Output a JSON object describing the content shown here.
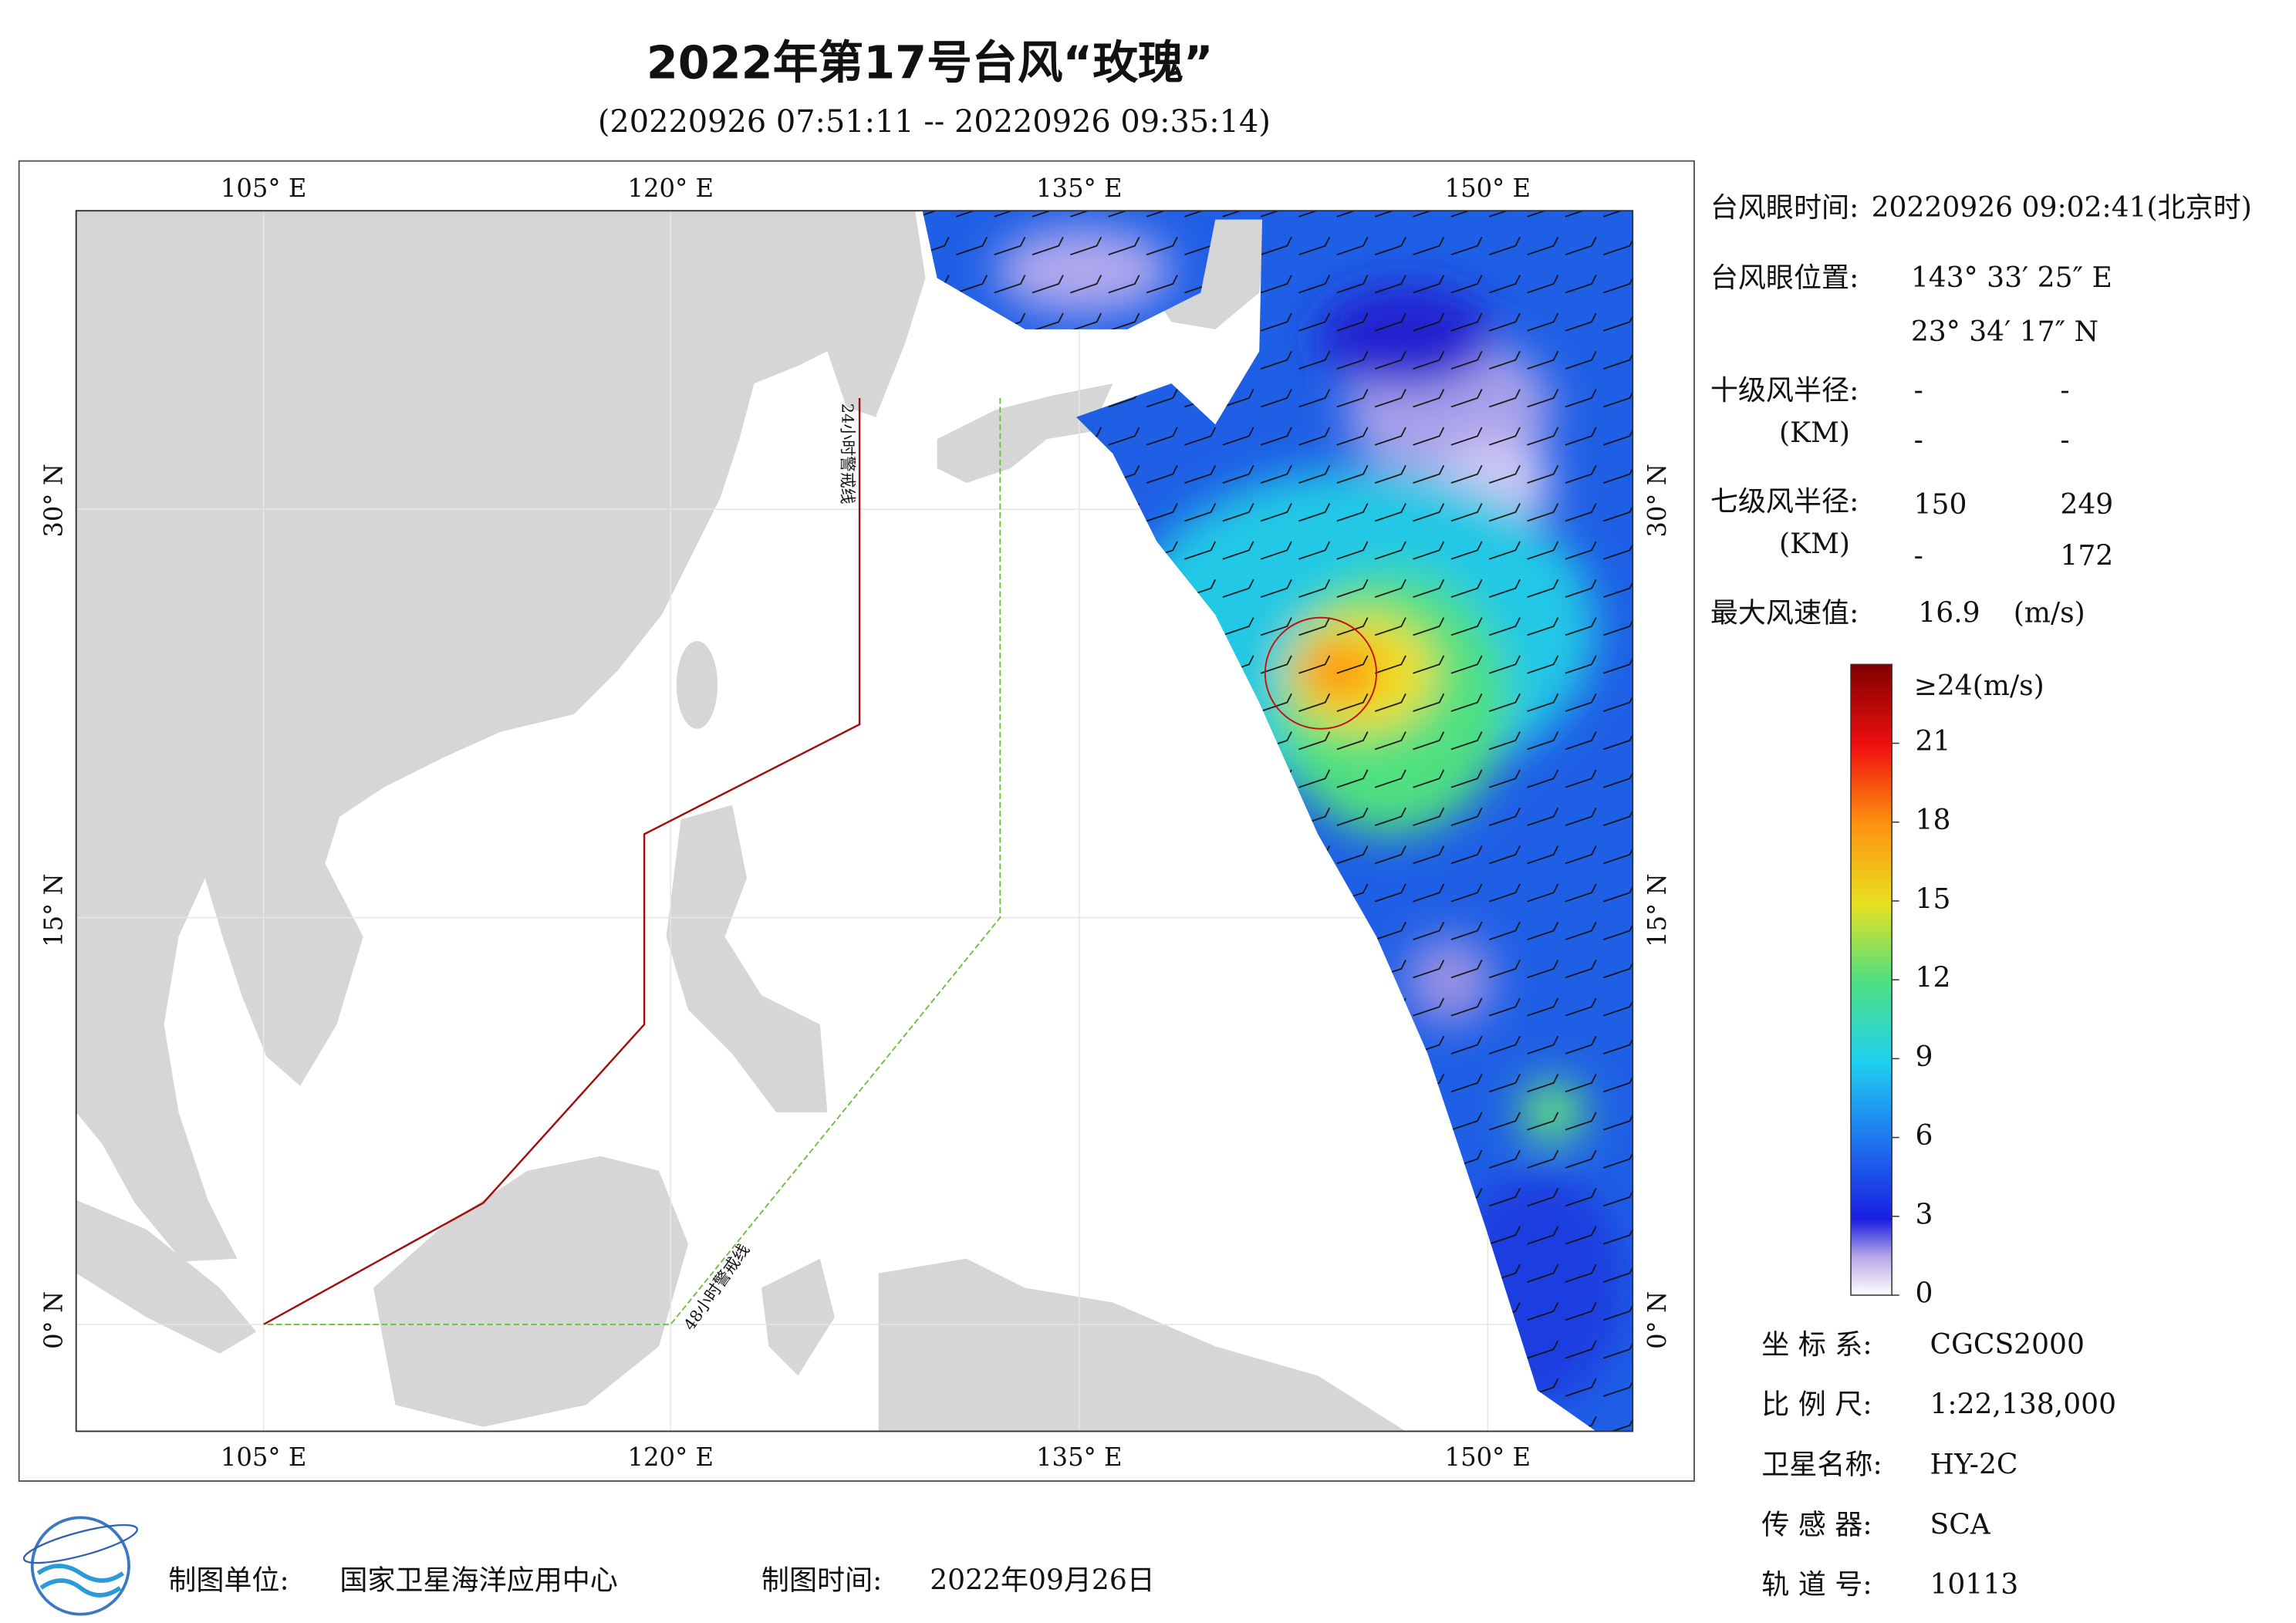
{
  "header": {
    "title": "2022年第17号台风“玫瑰”",
    "subtitle": "(20220926 07:51:11 -- 20220926 09:35:14)"
  },
  "map": {
    "lon_labels": [
      "105° E",
      "120° E",
      "135° E",
      "150° E"
    ],
    "lat_labels": [
      "30° N",
      "15° N",
      "0° N"
    ],
    "warning_lines": [
      "24小时警戒线",
      "48小时警戒线"
    ]
  },
  "info": {
    "eye_time_label": "台风眼时间:",
    "eye_time": "20220926 09:02:41(北京时)",
    "eye_pos_label": "台风眼位置:",
    "eye_lon": "143° 33′ 25″ E",
    "eye_lat": "23° 34′ 17″ N",
    "r10_label": "十级风半径:",
    "r10_unit": "(KM)",
    "r10": [
      [
        "-",
        "-"
      ],
      [
        "-",
        "-"
      ]
    ],
    "r7_label": "七级风半径:",
    "r7_unit": "(KM)",
    "r7": [
      [
        150,
        249
      ],
      [
        "-",
        172
      ]
    ],
    "max_wind_label": "最大风速值:",
    "max_wind": 16.9,
    "max_wind_unit": "(m/s)"
  },
  "colorbar": {
    "range": [
      0,
      24
    ],
    "ticks": [
      0,
      3,
      6,
      9,
      12,
      15,
      18,
      21
    ],
    "max_label": "≥24(m/s)"
  },
  "meta": [
    [
      "坐 标 系:",
      "CGCS2000"
    ],
    [
      "比 例 尺:",
      "1:22,138,000"
    ],
    [
      "卫星名称:",
      "HY-2C"
    ],
    [
      "传 感 器:",
      "SCA"
    ],
    [
      "轨 道 号:",
      "10113"
    ]
  ],
  "footer": {
    "unit_label": "制图单位:",
    "unit": "国家卫星海洋应用中心",
    "time_label": "制图时间:",
    "time": "2022年09月26日"
  }
}
